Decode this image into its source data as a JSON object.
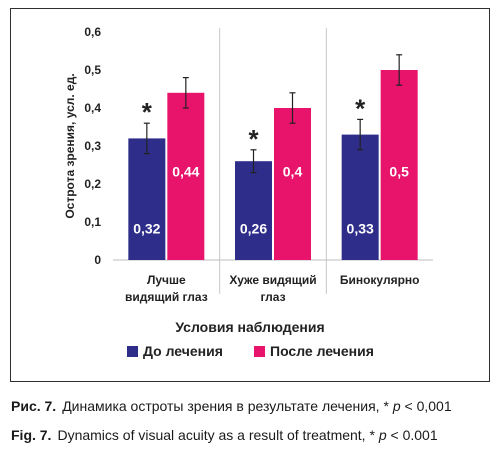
{
  "chart_data": {
    "type": "bar",
    "categories": [
      "Лучше видящий глаз",
      "Хуже видящий глаз",
      "Бинокулярно"
    ],
    "category_lines": [
      [
        "Лучше",
        "видящий глаз"
      ],
      [
        "Хуже видящий",
        "глаз"
      ],
      [
        "Бинокулярно"
      ]
    ],
    "series": [
      {
        "name": "До лечения",
        "values": [
          0.32,
          0.26,
          0.33
        ],
        "errors": [
          0.04,
          0.03,
          0.04
        ],
        "labels": [
          "0,32",
          "0,26",
          "0,33"
        ],
        "significance": [
          "*",
          "*",
          "*"
        ],
        "color": "#2e2e8a"
      },
      {
        "name": "После лечения",
        "values": [
          0.44,
          0.4,
          0.5
        ],
        "errors": [
          0.04,
          0.04,
          0.04
        ],
        "labels": [
          "0,44",
          "0,4",
          "0,5"
        ],
        "color": "#e8136b"
      }
    ],
    "xlabel": "Условия наблюдения",
    "ylabel": "Острота зрения, усл. ед.",
    "ylim": [
      0,
      0.6
    ],
    "yticks": [
      0,
      0.1,
      0.2,
      0.3,
      0.4,
      0.5,
      0.6
    ],
    "ytick_labels": [
      "0",
      "0,1",
      "0,2",
      "0,3",
      "0,4",
      "0,5",
      "0,6"
    ],
    "grid": false,
    "legend_placement": "bottom"
  },
  "caption": {
    "ru": {
      "label": "Рис. 7.",
      "text": "Динамика остроты зрения в результате лечения, * ",
      "p": "p",
      "tail": " < 0,001"
    },
    "en": {
      "label": "Fig. 7.",
      "text": "Dynamics of visual acuity as a result of treatment, * ",
      "p": "p",
      "tail": " < 0.001"
    }
  }
}
